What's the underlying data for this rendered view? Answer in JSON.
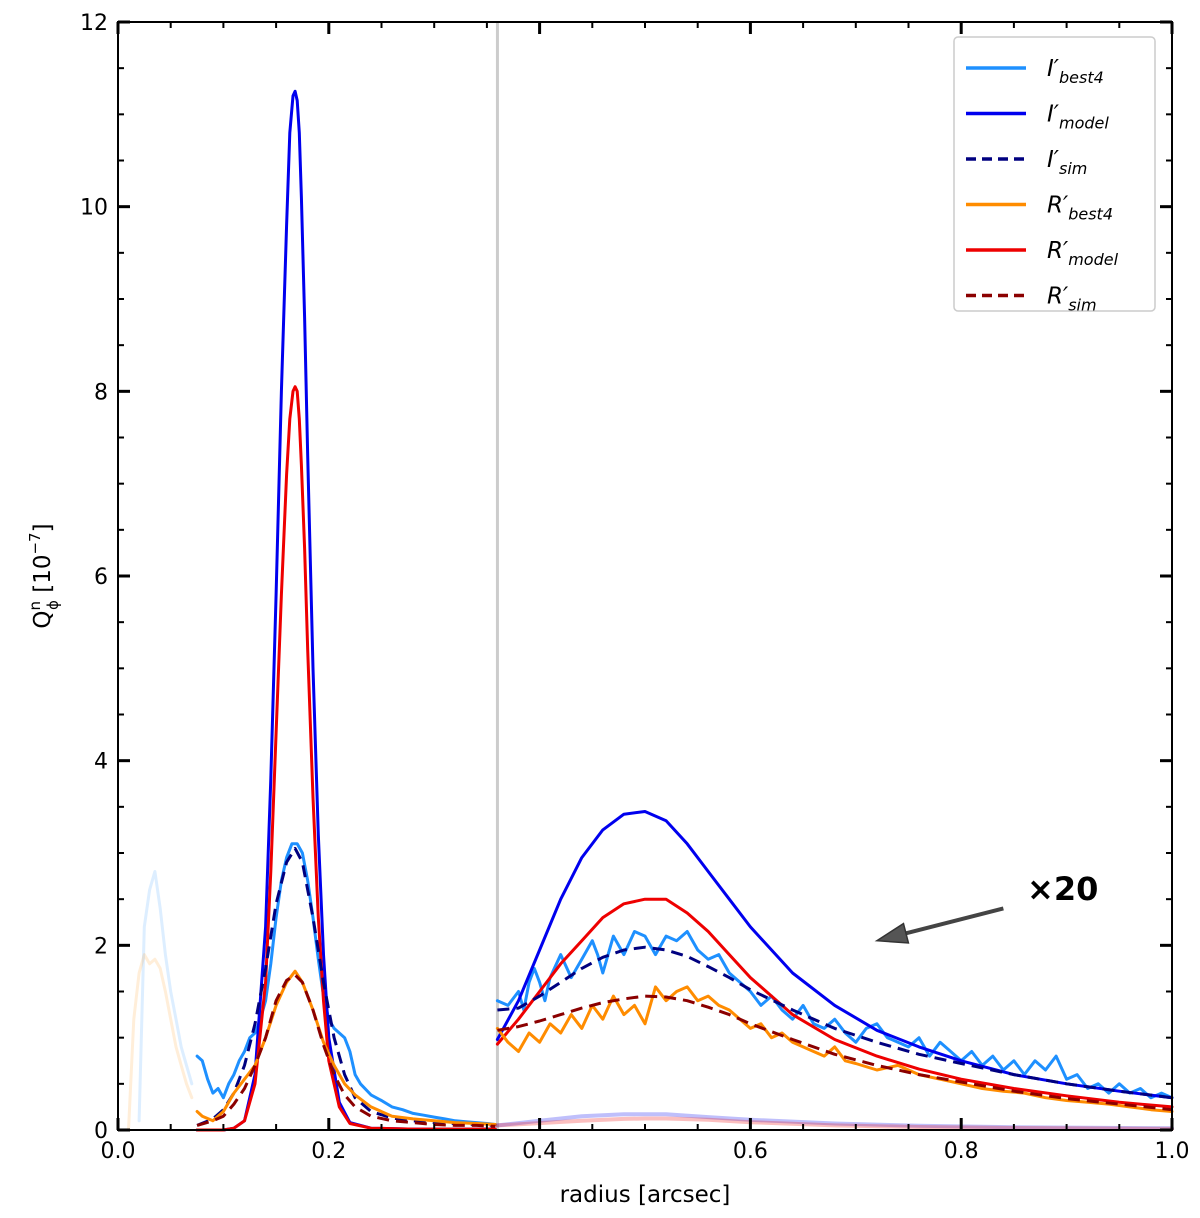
{
  "chart_data": {
    "type": "line",
    "xlabel": "radius [arcsec]",
    "ylabel": {
      "main": "Q",
      "sup": "n",
      "sub": "ϕ",
      "unit_prefix": " [10",
      "unit_exp": "−7",
      "unit_suffix": "]"
    },
    "xlim": [
      0.0,
      1.0
    ],
    "ylim": [
      0,
      12
    ],
    "xticks": [
      "0.0",
      "0.2",
      "0.4",
      "0.6",
      "0.8",
      "1.0"
    ],
    "yticks": [
      "0",
      "2",
      "4",
      "6",
      "8",
      "10",
      "12"
    ],
    "vline_x": 0.36,
    "annotation": {
      "text": "×20",
      "tip": [
        0.72,
        2.05
      ],
      "tail": [
        0.84,
        2.4
      ]
    },
    "legend": [
      {
        "id": "I_best4",
        "base": "I′",
        "sub": "best4",
        "color": "#1e90ff",
        "dash": false
      },
      {
        "id": "I_model",
        "base": "I′",
        "sub": "model",
        "color": "#0000ee",
        "dash": false
      },
      {
        "id": "I_sim",
        "base": "I′",
        "sub": "sim",
        "color": "#000080",
        "dash": true
      },
      {
        "id": "R_best4",
        "base": "R′",
        "sub": "best4",
        "color": "#ff8c00",
        "dash": false
      },
      {
        "id": "R_model",
        "base": "R′",
        "sub": "model",
        "color": "#ee0000",
        "dash": false
      },
      {
        "id": "R_sim",
        "base": "R′",
        "sub": "sim",
        "color": "#8b0000",
        "dash": true
      }
    ],
    "series": [
      {
        "name": "I′best4 (faded, inner)",
        "color": "#1e90ff",
        "opacity": 0.15,
        "dash": false,
        "width": 3,
        "x": [
          0.02,
          0.025,
          0.03,
          0.035,
          0.04,
          0.045,
          0.05,
          0.055,
          0.06,
          0.065,
          0.07
        ],
        "y": [
          0.1,
          2.2,
          2.6,
          2.8,
          2.4,
          1.9,
          1.5,
          1.2,
          0.9,
          0.7,
          0.5
        ]
      },
      {
        "name": "R′best4 (faded, inner)",
        "color": "#ff8c00",
        "opacity": 0.15,
        "dash": false,
        "width": 3,
        "x": [
          0.01,
          0.015,
          0.02,
          0.025,
          0.03,
          0.035,
          0.04,
          0.045,
          0.05,
          0.055,
          0.06,
          0.065,
          0.07
        ],
        "y": [
          0.0,
          1.2,
          1.7,
          1.9,
          1.8,
          1.85,
          1.75,
          1.5,
          1.2,
          0.9,
          0.7,
          0.5,
          0.35
        ]
      },
      {
        "name": "I′best4",
        "color": "#1e90ff",
        "opacity": 1,
        "dash": false,
        "width": 3,
        "x": [
          0.075,
          0.08,
          0.085,
          0.09,
          0.095,
          0.1,
          0.105,
          0.11,
          0.115,
          0.12,
          0.125,
          0.13,
          0.135,
          0.14,
          0.145,
          0.15,
          0.155,
          0.16,
          0.165,
          0.17,
          0.175,
          0.18,
          0.185,
          0.19,
          0.195,
          0.2,
          0.205,
          0.21,
          0.215,
          0.22,
          0.225,
          0.23,
          0.24,
          0.25,
          0.26,
          0.27,
          0.28,
          0.29,
          0.3,
          0.31,
          0.32,
          0.33,
          0.34,
          0.35,
          0.358
        ],
        "y": [
          0.8,
          0.75,
          0.55,
          0.4,
          0.45,
          0.35,
          0.5,
          0.6,
          0.75,
          0.85,
          1.0,
          1.05,
          1.2,
          1.4,
          1.8,
          2.3,
          2.7,
          2.95,
          3.1,
          3.1,
          3.0,
          2.7,
          2.3,
          1.85,
          1.45,
          1.2,
          1.1,
          1.05,
          1.0,
          0.85,
          0.6,
          0.5,
          0.38,
          0.32,
          0.25,
          0.22,
          0.18,
          0.16,
          0.14,
          0.12,
          0.1,
          0.09,
          0.08,
          0.07,
          0.06
        ]
      },
      {
        "name": "I′model",
        "color": "#0000ee",
        "opacity": 1,
        "dash": false,
        "width": 3,
        "x": [
          0.075,
          0.1,
          0.11,
          0.12,
          0.13,
          0.14,
          0.145,
          0.15,
          0.155,
          0.16,
          0.163,
          0.166,
          0.168,
          0.17,
          0.172,
          0.174,
          0.177,
          0.18,
          0.185,
          0.19,
          0.195,
          0.2,
          0.21,
          0.22,
          0.24,
          0.28,
          0.32,
          0.358
        ],
        "y": [
          0.0,
          0.0,
          0.02,
          0.1,
          0.6,
          2.2,
          3.8,
          5.8,
          8.0,
          9.8,
          10.8,
          11.2,
          11.25,
          11.15,
          10.8,
          10.1,
          8.8,
          7.3,
          5.0,
          3.2,
          1.9,
          1.0,
          0.3,
          0.08,
          0.02,
          0.01,
          0.01,
          0.01
        ]
      },
      {
        "name": "R′model",
        "color": "#ee0000",
        "opacity": 1,
        "dash": false,
        "width": 3,
        "x": [
          0.075,
          0.1,
          0.11,
          0.12,
          0.13,
          0.14,
          0.145,
          0.15,
          0.155,
          0.16,
          0.163,
          0.166,
          0.168,
          0.17,
          0.172,
          0.174,
          0.177,
          0.18,
          0.185,
          0.19,
          0.195,
          0.2,
          0.21,
          0.22,
          0.24,
          0.28,
          0.32,
          0.358
        ],
        "y": [
          0.0,
          0.0,
          0.02,
          0.1,
          0.5,
          1.6,
          2.8,
          4.3,
          5.8,
          7.1,
          7.7,
          8.0,
          8.05,
          8.0,
          7.7,
          7.2,
          6.3,
          5.2,
          3.6,
          2.3,
          1.4,
          0.75,
          0.25,
          0.07,
          0.02,
          0.01,
          0.01,
          0.01
        ]
      },
      {
        "name": "I′sim",
        "color": "#000080",
        "opacity": 1,
        "dash": true,
        "width": 3,
        "x": [
          0.075,
          0.09,
          0.1,
          0.11,
          0.12,
          0.13,
          0.14,
          0.15,
          0.16,
          0.168,
          0.175,
          0.185,
          0.195,
          0.205,
          0.215,
          0.225,
          0.24,
          0.26,
          0.28,
          0.3,
          0.32,
          0.34,
          0.358
        ],
        "y": [
          0.05,
          0.12,
          0.22,
          0.4,
          0.7,
          1.15,
          1.75,
          2.45,
          2.9,
          3.05,
          2.9,
          2.3,
          1.6,
          1.0,
          0.6,
          0.35,
          0.2,
          0.13,
          0.1,
          0.08,
          0.07,
          0.06,
          0.05
        ]
      },
      {
        "name": "R′best4",
        "color": "#ff8c00",
        "opacity": 1,
        "dash": false,
        "width": 3,
        "x": [
          0.075,
          0.08,
          0.09,
          0.1,
          0.11,
          0.12,
          0.13,
          0.14,
          0.15,
          0.16,
          0.168,
          0.175,
          0.185,
          0.195,
          0.205,
          0.215,
          0.225,
          0.24,
          0.26,
          0.28,
          0.3,
          0.32,
          0.34,
          0.358
        ],
        "y": [
          0.2,
          0.15,
          0.1,
          0.2,
          0.4,
          0.55,
          0.7,
          1.0,
          1.35,
          1.6,
          1.72,
          1.6,
          1.3,
          0.95,
          0.7,
          0.5,
          0.38,
          0.25,
          0.15,
          0.12,
          0.1,
          0.08,
          0.07,
          0.06
        ]
      },
      {
        "name": "R′sim",
        "color": "#8b0000",
        "opacity": 1,
        "dash": true,
        "width": 3,
        "x": [
          0.075,
          0.09,
          0.1,
          0.11,
          0.12,
          0.13,
          0.14,
          0.15,
          0.16,
          0.168,
          0.175,
          0.185,
          0.195,
          0.205,
          0.215,
          0.225,
          0.24,
          0.26,
          0.28,
          0.3,
          0.32,
          0.34,
          0.358
        ],
        "y": [
          0.05,
          0.1,
          0.15,
          0.28,
          0.45,
          0.7,
          1.0,
          1.4,
          1.62,
          1.68,
          1.6,
          1.3,
          0.92,
          0.6,
          0.38,
          0.25,
          0.15,
          0.1,
          0.08,
          0.06,
          0.05,
          0.05,
          0.04
        ]
      },
      {
        "name": "I′best4 ×20",
        "color": "#1e90ff",
        "opacity": 1,
        "dash": false,
        "width": 3,
        "x": [
          0.36,
          0.37,
          0.38,
          0.385,
          0.39,
          0.395,
          0.4,
          0.405,
          0.41,
          0.42,
          0.43,
          0.44,
          0.45,
          0.455,
          0.46,
          0.47,
          0.48,
          0.49,
          0.5,
          0.51,
          0.52,
          0.53,
          0.54,
          0.55,
          0.56,
          0.57,
          0.58,
          0.59,
          0.6,
          0.61,
          0.62,
          0.63,
          0.64,
          0.65,
          0.66,
          0.67,
          0.68,
          0.69,
          0.7,
          0.71,
          0.72,
          0.73,
          0.74,
          0.75,
          0.76,
          0.77,
          0.78,
          0.79,
          0.8,
          0.81,
          0.82,
          0.83,
          0.84,
          0.85,
          0.86,
          0.87,
          0.88,
          0.89,
          0.9,
          0.91,
          0.92,
          0.93,
          0.94,
          0.95,
          0.96,
          0.97,
          0.98,
          0.99,
          1.0
        ],
        "y": [
          1.4,
          1.35,
          1.5,
          1.3,
          1.6,
          1.75,
          1.6,
          1.4,
          1.65,
          1.9,
          1.65,
          1.85,
          2.05,
          1.9,
          1.7,
          2.1,
          1.9,
          2.15,
          2.1,
          1.9,
          2.1,
          2.05,
          2.15,
          1.95,
          1.85,
          1.9,
          1.7,
          1.6,
          1.5,
          1.35,
          1.45,
          1.3,
          1.2,
          1.35,
          1.15,
          1.1,
          1.2,
          1.05,
          0.95,
          1.1,
          1.15,
          1.0,
          0.95,
          0.9,
          1.0,
          0.8,
          0.95,
          0.85,
          0.75,
          0.85,
          0.7,
          0.8,
          0.65,
          0.75,
          0.6,
          0.75,
          0.65,
          0.8,
          0.55,
          0.6,
          0.45,
          0.5,
          0.4,
          0.5,
          0.4,
          0.45,
          0.35,
          0.4,
          0.35
        ]
      },
      {
        "name": "I′model ×20",
        "color": "#0000ee",
        "opacity": 1,
        "dash": false,
        "width": 3,
        "x": [
          0.36,
          0.38,
          0.4,
          0.42,
          0.44,
          0.46,
          0.48,
          0.5,
          0.52,
          0.54,
          0.56,
          0.58,
          0.6,
          0.64,
          0.68,
          0.72,
          0.76,
          0.8,
          0.85,
          0.9,
          0.95,
          1.0
        ],
        "y": [
          0.98,
          1.4,
          1.95,
          2.5,
          2.95,
          3.25,
          3.42,
          3.45,
          3.35,
          3.1,
          2.8,
          2.5,
          2.2,
          1.7,
          1.35,
          1.08,
          0.9,
          0.75,
          0.6,
          0.5,
          0.42,
          0.35
        ]
      },
      {
        "name": "R′model ×20",
        "color": "#ee0000",
        "opacity": 1,
        "dash": false,
        "width": 3,
        "x": [
          0.36,
          0.38,
          0.4,
          0.42,
          0.44,
          0.46,
          0.48,
          0.5,
          0.52,
          0.54,
          0.56,
          0.58,
          0.6,
          0.64,
          0.68,
          0.72,
          0.76,
          0.8,
          0.85,
          0.9,
          0.95,
          1.0
        ],
        "y": [
          0.93,
          1.2,
          1.5,
          1.8,
          2.05,
          2.3,
          2.45,
          2.5,
          2.5,
          2.35,
          2.15,
          1.9,
          1.65,
          1.25,
          0.98,
          0.8,
          0.66,
          0.55,
          0.45,
          0.37,
          0.3,
          0.25
        ]
      },
      {
        "name": "I′sim ×20",
        "color": "#000080",
        "opacity": 1,
        "dash": true,
        "width": 3,
        "x": [
          0.36,
          0.38,
          0.4,
          0.42,
          0.44,
          0.46,
          0.48,
          0.5,
          0.52,
          0.54,
          0.56,
          0.58,
          0.6,
          0.64,
          0.68,
          0.72,
          0.76,
          0.8,
          0.85,
          0.9,
          0.95,
          1.0
        ],
        "y": [
          1.3,
          1.32,
          1.45,
          1.6,
          1.75,
          1.87,
          1.95,
          1.98,
          1.95,
          1.88,
          1.77,
          1.65,
          1.52,
          1.3,
          1.1,
          0.95,
          0.82,
          0.72,
          0.6,
          0.5,
          0.42,
          0.35
        ]
      },
      {
        "name": "R′best4 ×20",
        "color": "#ff8c00",
        "opacity": 1,
        "dash": false,
        "width": 3,
        "x": [
          0.36,
          0.37,
          0.38,
          0.39,
          0.4,
          0.41,
          0.42,
          0.43,
          0.44,
          0.45,
          0.46,
          0.47,
          0.48,
          0.49,
          0.5,
          0.51,
          0.52,
          0.53,
          0.54,
          0.55,
          0.56,
          0.57,
          0.58,
          0.59,
          0.6,
          0.61,
          0.62,
          0.63,
          0.64,
          0.65,
          0.66,
          0.67,
          0.68,
          0.69,
          0.7,
          0.72,
          0.74,
          0.76,
          0.78,
          0.8,
          0.82,
          0.84,
          0.86,
          0.88,
          0.9,
          0.92,
          0.94,
          0.96,
          0.98,
          1.0
        ],
        "y": [
          1.1,
          0.95,
          0.85,
          1.05,
          0.95,
          1.15,
          1.05,
          1.25,
          1.1,
          1.35,
          1.2,
          1.45,
          1.25,
          1.35,
          1.15,
          1.55,
          1.4,
          1.5,
          1.55,
          1.4,
          1.45,
          1.35,
          1.3,
          1.2,
          1.1,
          1.15,
          1.0,
          1.05,
          0.95,
          0.9,
          0.85,
          0.8,
          0.9,
          0.75,
          0.72,
          0.65,
          0.7,
          0.6,
          0.55,
          0.5,
          0.45,
          0.42,
          0.4,
          0.35,
          0.32,
          0.3,
          0.28,
          0.25,
          0.22,
          0.2
        ]
      },
      {
        "name": "R′sim ×20",
        "color": "#8b0000",
        "opacity": 1,
        "dash": true,
        "width": 3,
        "x": [
          0.36,
          0.38,
          0.4,
          0.42,
          0.44,
          0.46,
          0.48,
          0.5,
          0.52,
          0.54,
          0.56,
          0.58,
          0.6,
          0.64,
          0.68,
          0.72,
          0.76,
          0.8,
          0.85,
          0.9,
          0.95,
          1.0
        ],
        "y": [
          1.08,
          1.12,
          1.18,
          1.25,
          1.32,
          1.38,
          1.42,
          1.45,
          1.44,
          1.4,
          1.33,
          1.25,
          1.15,
          0.98,
          0.82,
          0.7,
          0.6,
          0.52,
          0.42,
          0.34,
          0.28,
          0.22
        ]
      },
      {
        "name": "I′model (faded, unscaled)",
        "color": "#0000ee",
        "opacity": 0.25,
        "dash": false,
        "width": 4,
        "x": [
          0.36,
          0.4,
          0.44,
          0.48,
          0.5,
          0.52,
          0.56,
          0.6,
          0.68,
          0.76,
          0.85,
          1.0
        ],
        "y": [
          0.05,
          0.1,
          0.15,
          0.17,
          0.17,
          0.17,
          0.14,
          0.11,
          0.07,
          0.045,
          0.03,
          0.018
        ]
      },
      {
        "name": "R′model (faded, unscaled)",
        "color": "#ee0000",
        "opacity": 0.25,
        "dash": false,
        "width": 4,
        "x": [
          0.36,
          0.4,
          0.44,
          0.48,
          0.5,
          0.52,
          0.56,
          0.6,
          0.68,
          0.76,
          0.85,
          1.0
        ],
        "y": [
          0.05,
          0.075,
          0.1,
          0.12,
          0.125,
          0.125,
          0.11,
          0.085,
          0.05,
          0.033,
          0.022,
          0.012
        ]
      }
    ]
  }
}
